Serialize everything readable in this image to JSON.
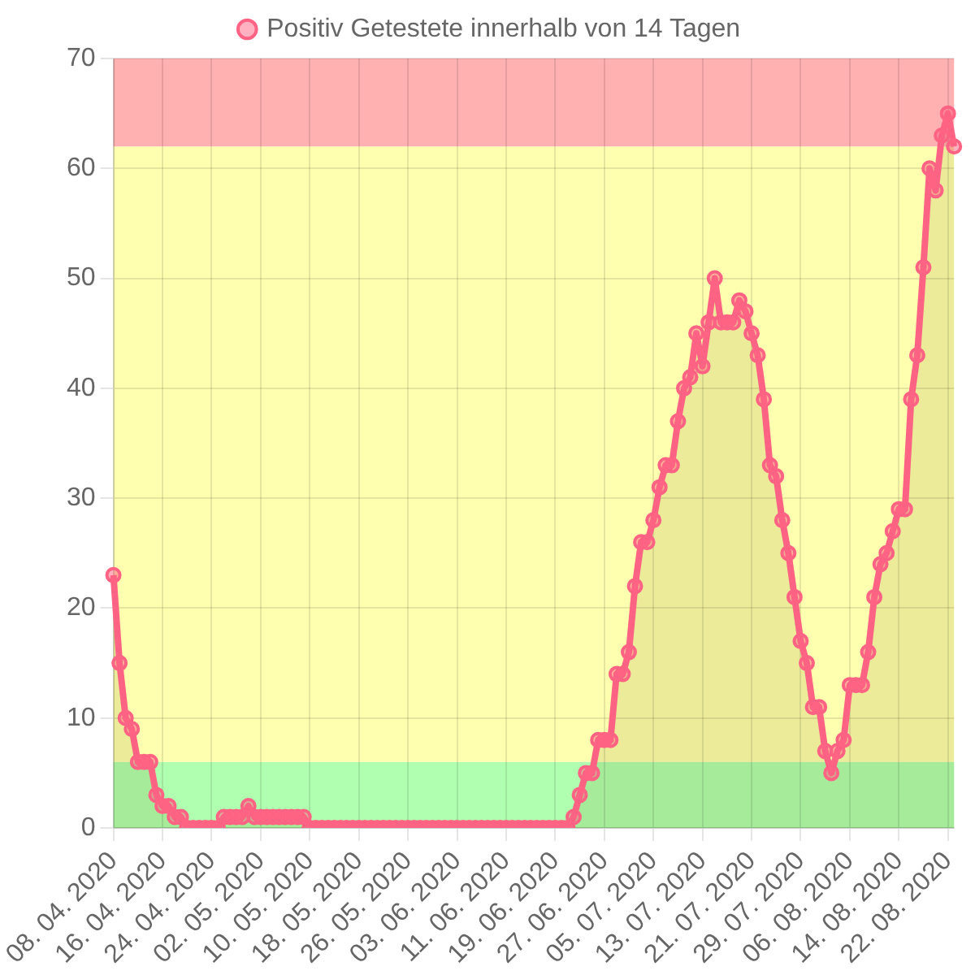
{
  "chart_data": {
    "type": "area",
    "categories": [
      "08. 04. 2020",
      null,
      null,
      null,
      null,
      null,
      null,
      null,
      "16. 04. 2020",
      null,
      null,
      null,
      null,
      null,
      null,
      null,
      "24. 04. 2020",
      null,
      null,
      null,
      null,
      null,
      null,
      null,
      "02. 05. 2020",
      null,
      null,
      null,
      null,
      null,
      null,
      null,
      "10. 05. 2020",
      null,
      null,
      null,
      null,
      null,
      null,
      null,
      "18. 05. 2020",
      null,
      null,
      null,
      null,
      null,
      null,
      null,
      "26. 05. 2020",
      null,
      null,
      null,
      null,
      null,
      null,
      null,
      "03. 06. 2020",
      null,
      null,
      null,
      null,
      null,
      null,
      null,
      "11. 06. 2020",
      null,
      null,
      null,
      null,
      null,
      null,
      null,
      "19. 06. 2020",
      null,
      null,
      null,
      null,
      null,
      null,
      null,
      "27. 06. 2020",
      null,
      null,
      null,
      null,
      null,
      null,
      null,
      "05. 07. 2020",
      null,
      null,
      null,
      null,
      null,
      null,
      null,
      "13. 07. 2020",
      null,
      null,
      null,
      null,
      null,
      null,
      null,
      "21. 07. 2020",
      null,
      null,
      null,
      null,
      null,
      null,
      null,
      "29. 07. 2020",
      null,
      null,
      null,
      null,
      null,
      null,
      null,
      "06. 08. 2020",
      null,
      null,
      null,
      null,
      null,
      null,
      null,
      "14. 08. 2020",
      null,
      null,
      null,
      null,
      null,
      null,
      null,
      "22. 08. 2020",
      null
    ],
    "series": [
      {
        "name": "Positiv Getestete innerhalb von 14 Tagen",
        "color": "#ff6384",
        "values": [
          23,
          15,
          10,
          9,
          6,
          6,
          6,
          3,
          2,
          2,
          1,
          1,
          0,
          0,
          0,
          0,
          0,
          0,
          1,
          1,
          1,
          1,
          2,
          1,
          1,
          1,
          1,
          1,
          1,
          1,
          1,
          1,
          0,
          0,
          0,
          0,
          0,
          0,
          0,
          0,
          0,
          0,
          0,
          0,
          0,
          0,
          0,
          0,
          0,
          0,
          0,
          0,
          0,
          0,
          0,
          0,
          0,
          0,
          0,
          0,
          0,
          0,
          0,
          0,
          0,
          0,
          0,
          0,
          0,
          0,
          0,
          0,
          0,
          0,
          0,
          1,
          3,
          5,
          5,
          8,
          8,
          8,
          14,
          14,
          16,
          22,
          26,
          26,
          28,
          31,
          33,
          33,
          37,
          40,
          41,
          45,
          42,
          46,
          50,
          46,
          46,
          46,
          48,
          47,
          45,
          43,
          39,
          33,
          32,
          28,
          25,
          21,
          17,
          15,
          11,
          11,
          7,
          5,
          7,
          8,
          13,
          13,
          13,
          16,
          21,
          24,
          25,
          27,
          29,
          29,
          39,
          43,
          51,
          60,
          58,
          63,
          65,
          62
        ]
      }
    ],
    "ylim": [
      0,
      70
    ],
    "yticks": [
      0,
      10,
      20,
      30,
      40,
      50,
      60,
      70
    ],
    "bands": [
      {
        "axis": "y",
        "from": 0,
        "to": 6,
        "color": "#b0ffb0"
      },
      {
        "axis": "y",
        "from": 6,
        "to": 62,
        "color": "#ffffb0"
      },
      {
        "axis": "y",
        "from": 62,
        "to": 70,
        "color": "#ffb0b0"
      }
    ],
    "grid": true,
    "legend": "top",
    "marker": "circle",
    "line_style": "solid"
  }
}
